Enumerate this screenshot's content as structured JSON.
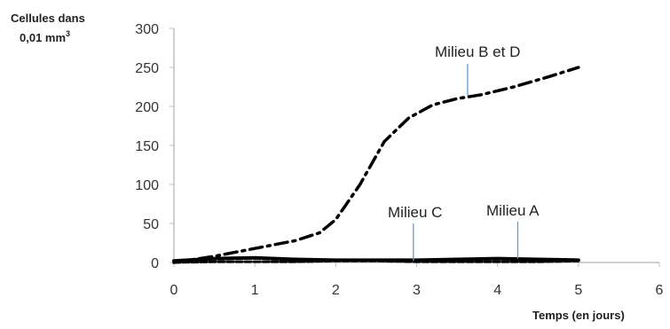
{
  "chart_data": {
    "type": "line",
    "title": "",
    "ylabel_line1": "Cellules dans",
    "ylabel_line2": "0,01 mm",
    "ylabel_sup": "3",
    "xlabel": "Temps (en jours)",
    "xlim": [
      0,
      6
    ],
    "ylim": [
      0,
      300
    ],
    "xticks": [
      0,
      1,
      2,
      3,
      4,
      5,
      6
    ],
    "yticks": [
      0,
      50,
      100,
      150,
      200,
      250,
      300
    ],
    "grid": false,
    "series": [
      {
        "label_ref": "B_D",
        "style": "dash-dot",
        "color": "#000000",
        "points": [
          [
            0,
            0
          ],
          [
            0.5,
            8
          ],
          [
            1,
            18
          ],
          [
            1.5,
            28
          ],
          [
            1.8,
            38
          ],
          [
            2.0,
            55
          ],
          [
            2.3,
            100
          ],
          [
            2.6,
            155
          ],
          [
            2.9,
            185
          ],
          [
            3.2,
            202
          ],
          [
            3.5,
            210
          ],
          [
            3.8,
            215
          ],
          [
            4.2,
            225
          ],
          [
            4.6,
            237
          ],
          [
            5.0,
            250
          ]
        ]
      },
      {
        "label_ref": "A",
        "style": "solid",
        "color": "#000000",
        "points": [
          [
            0,
            2
          ],
          [
            0.5,
            5
          ],
          [
            1,
            6
          ],
          [
            1.5,
            4
          ],
          [
            2,
            3
          ],
          [
            2.5,
            3
          ],
          [
            3,
            3
          ],
          [
            3.5,
            4
          ],
          [
            4,
            5
          ],
          [
            4.5,
            4
          ],
          [
            5,
            3
          ]
        ]
      },
      {
        "label_ref": "C",
        "style": "dashed",
        "color": "#000000",
        "points": [
          [
            0,
            0
          ],
          [
            0.5,
            1
          ],
          [
            1,
            1
          ],
          [
            1.5,
            1
          ],
          [
            2,
            2
          ],
          [
            2.5,
            2
          ],
          [
            3,
            1
          ],
          [
            3.5,
            1
          ],
          [
            4,
            1
          ],
          [
            4.5,
            1
          ],
          [
            5,
            2
          ]
        ]
      }
    ],
    "annotations": {
      "B_D": "Milieu B et D",
      "C": "Milieu C",
      "A": "Milieu A"
    }
  }
}
